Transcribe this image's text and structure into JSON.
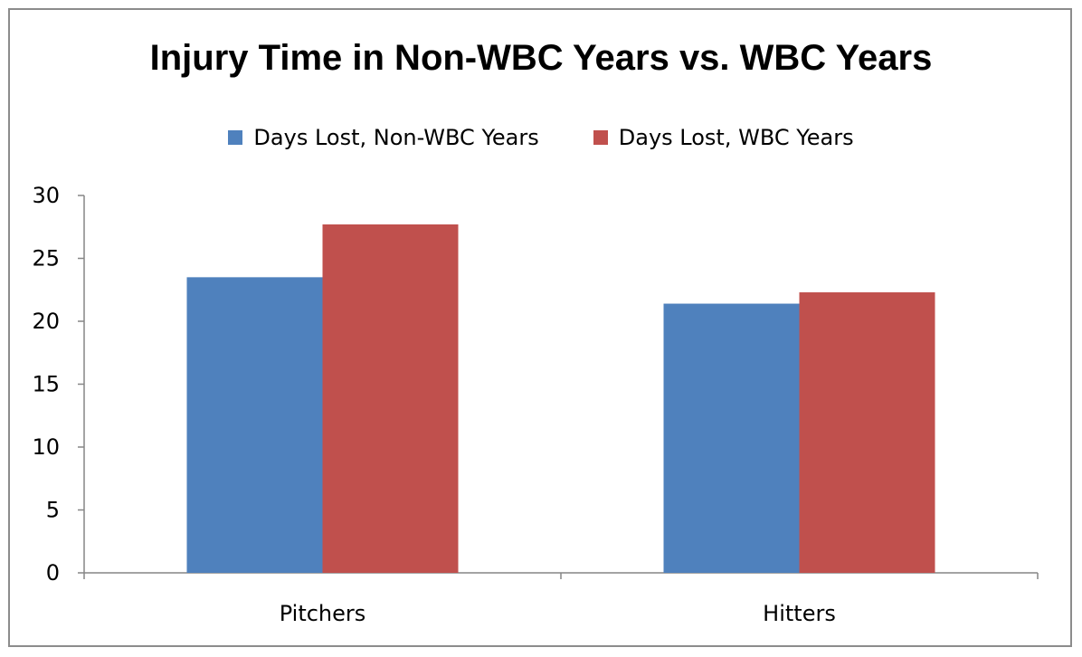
{
  "chart_data": {
    "type": "bar",
    "title": "Injury Time in Non-WBC Years vs. WBC Years",
    "categories": [
      "Pitchers",
      "Hitters"
    ],
    "series": [
      {
        "name": "Days Lost, Non-WBC Years",
        "color": "#4f81bd",
        "values": [
          23.5,
          21.4
        ]
      },
      {
        "name": "Days Lost, WBC Years",
        "color": "#c0504d",
        "values": [
          27.7,
          22.3
        ]
      }
    ],
    "ylim": [
      0,
      30
    ],
    "yticks": [
      "0",
      "5",
      "10",
      "15",
      "20",
      "25",
      "30"
    ],
    "legend_position": "top",
    "grid": false
  }
}
